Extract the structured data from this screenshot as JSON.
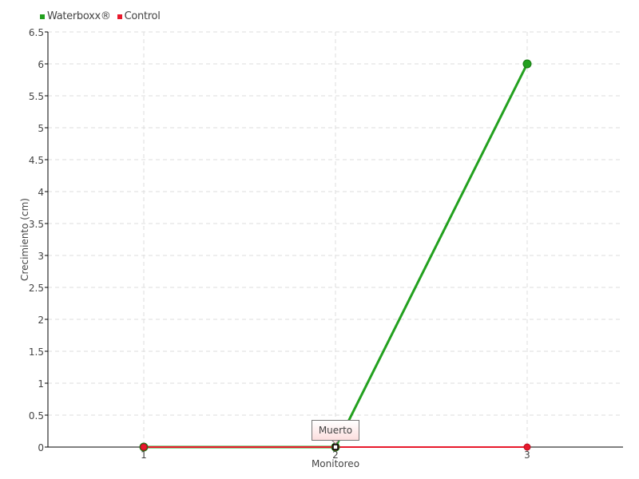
{
  "chart_data": {
    "type": "line",
    "xlabel": "Monitoreo",
    "ylabel": "Crecimiento (cm)",
    "categories": [
      "1",
      "2",
      "3"
    ],
    "ylim": [
      0,
      6.5
    ],
    "yticks": [
      "0",
      "0.5",
      "1",
      "1.5",
      "2",
      "2.5",
      "3",
      "3.5",
      "4",
      "4.5",
      "5",
      "5.5",
      "6",
      "6.5"
    ],
    "grid": true,
    "legend_position": "top-left",
    "series": [
      {
        "name": "Waterboxx®",
        "color": "#22a01e",
        "values": [
          0,
          0,
          6
        ]
      },
      {
        "name": "Control",
        "color": "#e8192c",
        "values": [
          0,
          0,
          0
        ]
      }
    ],
    "tooltip": {
      "category": "2",
      "text": "Muerto"
    }
  }
}
